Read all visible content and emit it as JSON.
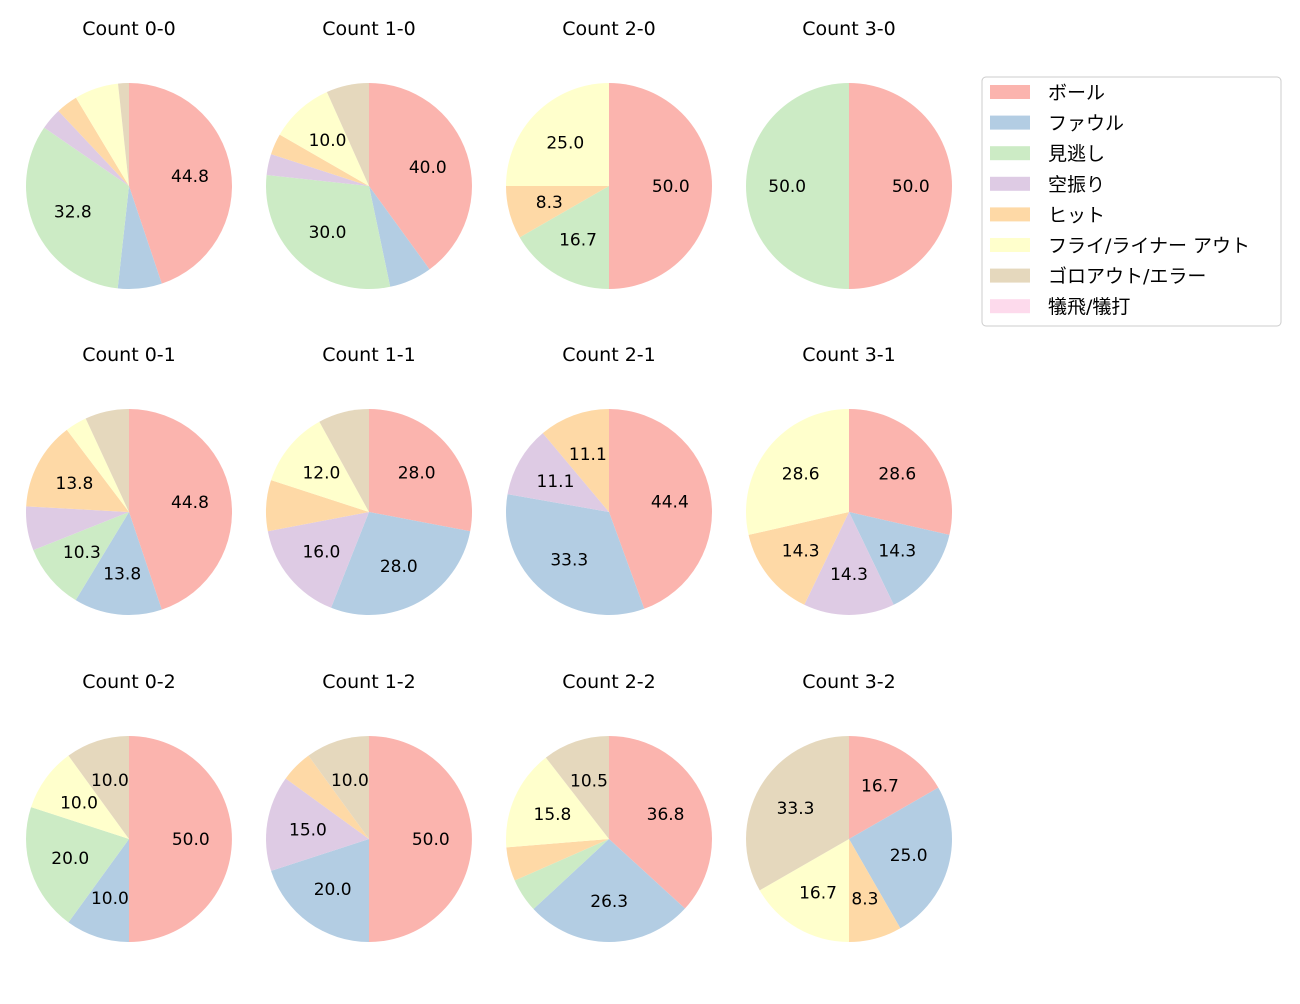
{
  "chart_data": {
    "type": "pie",
    "categories": [
      "ボール",
      "ファウル",
      "見逃し",
      "空振り",
      "ヒット",
      "フライ/ライナー アウト",
      "ゴロアウト/エラー",
      "犠飛/犠打"
    ],
    "colors": [
      "#fbb4ae",
      "#b3cde3",
      "#ccebc5",
      "#decbe4",
      "#fed9a6",
      "#ffffcc",
      "#e5d8bd",
      "#fddaec"
    ],
    "start_angle": 90,
    "direction": "clockwise",
    "legend_position": "right",
    "charts": [
      {
        "title": "Count 0-0",
        "values": [
          44.8,
          6.9,
          32.8,
          3.4,
          3.4,
          6.9,
          1.7,
          0
        ]
      },
      {
        "title": "Count 1-0",
        "values": [
          40.0,
          6.7,
          30.0,
          3.3,
          3.3,
          10.0,
          6.7,
          0
        ]
      },
      {
        "title": "Count 2-0",
        "values": [
          50.0,
          0,
          16.7,
          0,
          8.3,
          25.0,
          0,
          0
        ]
      },
      {
        "title": "Count 3-0",
        "values": [
          50.0,
          0,
          50.0,
          0,
          0,
          0,
          0,
          0
        ]
      },
      {
        "title": "Count 0-1",
        "values": [
          44.8,
          13.8,
          10.3,
          6.9,
          13.8,
          3.4,
          6.9,
          0
        ]
      },
      {
        "title": "Count 1-1",
        "values": [
          28.0,
          28.0,
          0,
          16.0,
          8.0,
          12.0,
          8.0,
          0
        ]
      },
      {
        "title": "Count 2-1",
        "values": [
          44.4,
          33.3,
          0,
          11.1,
          11.1,
          0,
          0,
          0
        ]
      },
      {
        "title": "Count 3-1",
        "values": [
          28.6,
          14.3,
          0,
          14.3,
          14.3,
          28.6,
          0,
          0
        ]
      },
      {
        "title": "Count 0-2",
        "values": [
          50.0,
          10.0,
          20.0,
          0,
          0,
          10.0,
          10.0,
          0
        ]
      },
      {
        "title": "Count 1-2",
        "values": [
          50.0,
          20.0,
          0,
          15.0,
          5.0,
          0,
          10.0,
          0
        ]
      },
      {
        "title": "Count 2-2",
        "values": [
          36.8,
          26.3,
          5.3,
          0,
          5.3,
          15.8,
          10.5,
          0
        ]
      },
      {
        "title": "Count 3-2",
        "values": [
          16.7,
          25.0,
          0,
          0,
          8.3,
          16.7,
          33.3,
          0
        ]
      }
    ],
    "label_min_percent": 8.1
  }
}
